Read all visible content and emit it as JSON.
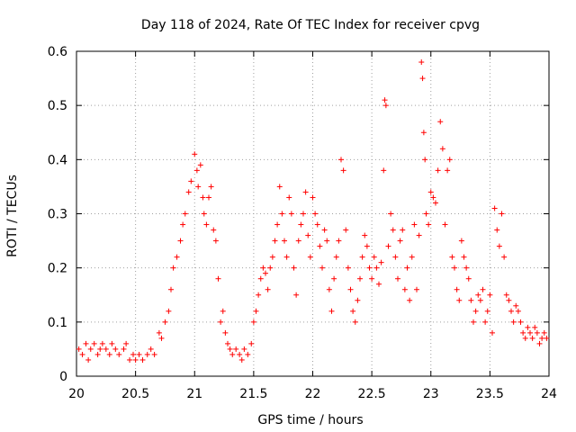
{
  "chart_data": {
    "type": "scatter",
    "title": "Day 118 of 2024, Rate Of TEC Index for receiver cpvg",
    "xlabel": "GPS time / hours",
    "ylabel": "ROTI / TECUs",
    "xlim": [
      20,
      24
    ],
    "ylim": [
      0,
      0.6
    ],
    "xticks": [
      "20",
      "20.5",
      "21",
      "21.5",
      "22",
      "22.5",
      "23",
      "23.5",
      "24"
    ],
    "yticks": [
      "0",
      "0.1",
      "0.2",
      "0.3",
      "0.4",
      "0.5",
      "0.6"
    ],
    "grid": true,
    "marker": "+",
    "color": "#ff0000",
    "series": [
      {
        "name": "ROTI",
        "x": [
          20.02,
          20.05,
          20.08,
          20.1,
          20.12,
          20.15,
          20.18,
          20.2,
          20.22,
          20.25,
          20.28,
          20.3,
          20.33,
          20.36,
          20.4,
          20.42,
          20.45,
          20.48,
          20.5,
          20.53,
          20.56,
          20.6,
          20.63,
          20.66,
          20.7,
          20.72,
          20.75,
          20.78,
          20.8,
          20.82,
          20.85,
          20.88,
          20.9,
          20.92,
          20.95,
          20.97,
          21.0,
          21.02,
          21.03,
          21.05,
          21.07,
          21.08,
          21.1,
          21.12,
          21.14,
          21.16,
          21.18,
          21.2,
          21.22,
          21.24,
          21.26,
          21.28,
          21.3,
          21.32,
          21.35,
          21.38,
          21.4,
          21.42,
          21.45,
          21.48,
          21.5,
          21.52,
          21.54,
          21.56,
          21.58,
          21.6,
          21.62,
          21.64,
          21.66,
          21.68,
          21.7,
          21.72,
          21.74,
          21.76,
          21.78,
          21.8,
          21.82,
          21.84,
          21.86,
          21.88,
          21.9,
          21.92,
          21.94,
          21.96,
          21.98,
          22.0,
          22.02,
          22.04,
          22.06,
          22.08,
          22.1,
          22.12,
          22.14,
          22.16,
          22.18,
          22.2,
          22.22,
          22.24,
          22.26,
          22.28,
          22.3,
          22.32,
          22.34,
          22.36,
          22.38,
          22.4,
          22.42,
          22.44,
          22.46,
          22.48,
          22.5,
          22.52,
          22.54,
          22.56,
          22.58,
          22.6,
          22.61,
          22.62,
          22.64,
          22.66,
          22.68,
          22.7,
          22.72,
          22.74,
          22.76,
          22.78,
          22.8,
          22.82,
          22.84,
          22.86,
          22.88,
          22.9,
          22.92,
          22.93,
          22.94,
          22.95,
          22.96,
          22.98,
          23.0,
          23.02,
          23.04,
          23.06,
          23.08,
          23.1,
          23.12,
          23.14,
          23.16,
          23.18,
          23.2,
          23.22,
          23.24,
          23.26,
          23.28,
          23.3,
          23.32,
          23.34,
          23.36,
          23.38,
          23.4,
          23.42,
          23.44,
          23.46,
          23.48,
          23.5,
          23.52,
          23.54,
          23.56,
          23.58,
          23.6,
          23.62,
          23.64,
          23.66,
          23.68,
          23.7,
          23.72,
          23.74,
          23.76,
          23.78,
          23.8,
          23.82,
          23.84,
          23.86,
          23.88,
          23.9,
          23.92,
          23.94,
          23.96,
          23.98
        ],
        "y": [
          0.05,
          0.04,
          0.06,
          0.03,
          0.05,
          0.06,
          0.04,
          0.05,
          0.06,
          0.05,
          0.04,
          0.06,
          0.05,
          0.04,
          0.05,
          0.06,
          0.03,
          0.04,
          0.03,
          0.04,
          0.03,
          0.04,
          0.05,
          0.04,
          0.08,
          0.07,
          0.1,
          0.12,
          0.16,
          0.2,
          0.22,
          0.25,
          0.28,
          0.3,
          0.34,
          0.36,
          0.41,
          0.38,
          0.35,
          0.39,
          0.33,
          0.3,
          0.28,
          0.33,
          0.35,
          0.27,
          0.25,
          0.18,
          0.1,
          0.12,
          0.08,
          0.06,
          0.05,
          0.04,
          0.05,
          0.04,
          0.03,
          0.05,
          0.04,
          0.06,
          0.1,
          0.12,
          0.15,
          0.18,
          0.2,
          0.19,
          0.16,
          0.2,
          0.22,
          0.25,
          0.28,
          0.35,
          0.3,
          0.25,
          0.22,
          0.33,
          0.3,
          0.2,
          0.15,
          0.25,
          0.28,
          0.3,
          0.34,
          0.26,
          0.22,
          0.33,
          0.3,
          0.28,
          0.24,
          0.2,
          0.27,
          0.25,
          0.16,
          0.12,
          0.18,
          0.22,
          0.25,
          0.4,
          0.38,
          0.27,
          0.2,
          0.16,
          0.12,
          0.1,
          0.14,
          0.18,
          0.22,
          0.26,
          0.24,
          0.2,
          0.18,
          0.22,
          0.2,
          0.17,
          0.21,
          0.38,
          0.51,
          0.5,
          0.24,
          0.3,
          0.27,
          0.22,
          0.18,
          0.25,
          0.27,
          0.16,
          0.2,
          0.14,
          0.22,
          0.28,
          0.16,
          0.26,
          0.58,
          0.55,
          0.45,
          0.4,
          0.3,
          0.28,
          0.34,
          0.33,
          0.32,
          0.38,
          0.47,
          0.42,
          0.28,
          0.38,
          0.4,
          0.22,
          0.2,
          0.16,
          0.14,
          0.25,
          0.22,
          0.2,
          0.18,
          0.14,
          0.1,
          0.12,
          0.15,
          0.14,
          0.16,
          0.1,
          0.12,
          0.15,
          0.08,
          0.31,
          0.27,
          0.24,
          0.3,
          0.22,
          0.15,
          0.14,
          0.12,
          0.1,
          0.13,
          0.12,
          0.1,
          0.08,
          0.07,
          0.09,
          0.08,
          0.07,
          0.09,
          0.08,
          0.06,
          0.07,
          0.08,
          0.07
        ]
      }
    ]
  }
}
